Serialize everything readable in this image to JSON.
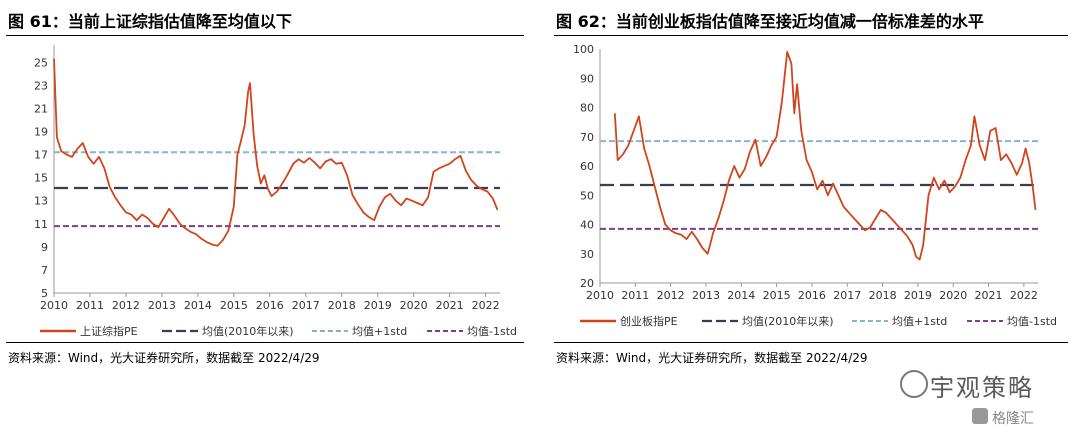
{
  "left": {
    "title": "图 61：当前上证综指估值降至均值以下",
    "source": "资料来源：Wind，光大证券研究所，数据截至 2022/4/29"
  },
  "right": {
    "title": "图 62：当前创业板指估值降至接近均值减一倍标准差的水平",
    "source": "资料来源：Wind，光大证券研究所，数据截至 2022/4/29"
  },
  "watermark": {
    "text": "宇观策略",
    "brand": "格隆汇"
  },
  "colors": {
    "pe": "#d2441c",
    "mean": "#3b3b5c",
    "plus": "#86b4cf",
    "minus": "#7a3f86"
  },
  "chart_data": [
    {
      "type": "line",
      "x_ticks": [
        "2010",
        "2011",
        "2012",
        "2013",
        "2014",
        "2015",
        "2016",
        "2017",
        "2018",
        "2019",
        "2020",
        "2021",
        "2022"
      ],
      "y_ticks": [
        "5",
        "7",
        "9",
        "11",
        "13",
        "15",
        "17",
        "19",
        "21",
        "23",
        "25"
      ],
      "xlim": [
        2010,
        2022.4
      ],
      "ylim": [
        5,
        26.5
      ],
      "legend": [
        "上证综指PE",
        "均值(2010年以来)",
        "均值+1std",
        "均值-1std"
      ],
      "legend_position": "bottom",
      "mean": 14.1,
      "plus_1std": 17.2,
      "minus_1std": 10.8,
      "series": [
        {
          "x": [
            2010.0,
            2010.08,
            2010.2,
            2010.35,
            2010.5,
            2010.65,
            2010.8,
            2010.95,
            2011.1,
            2011.25,
            2011.4,
            2011.55,
            2011.7,
            2011.85,
            2012.0,
            2012.15,
            2012.3,
            2012.45,
            2012.6,
            2012.75,
            2012.9,
            2013.05,
            2013.2,
            2013.35,
            2013.5,
            2013.65,
            2013.8,
            2013.95,
            2014.1,
            2014.25,
            2014.4,
            2014.55,
            2014.7,
            2014.85,
            2015.0,
            2015.1,
            2015.2,
            2015.3,
            2015.4,
            2015.45,
            2015.55,
            2015.65,
            2015.75,
            2015.85,
            2015.95,
            2016.05,
            2016.2,
            2016.35,
            2016.5,
            2016.65,
            2016.8,
            2016.95,
            2017.1,
            2017.25,
            2017.4,
            2017.55,
            2017.7,
            2017.85,
            2018.0,
            2018.15,
            2018.3,
            2018.45,
            2018.6,
            2018.75,
            2018.9,
            2019.05,
            2019.2,
            2019.35,
            2019.5,
            2019.65,
            2019.8,
            2019.95,
            2020.1,
            2020.25,
            2020.4,
            2020.55,
            2020.7,
            2020.85,
            2021.0,
            2021.15,
            2021.3,
            2021.45,
            2021.6,
            2021.75,
            2021.9,
            2022.05,
            2022.2,
            2022.33
          ],
          "values": [
            25.3,
            18.5,
            17.3,
            17.0,
            16.8,
            17.5,
            18.0,
            16.8,
            16.2,
            16.8,
            15.8,
            14.2,
            13.3,
            12.6,
            12.0,
            11.8,
            11.3,
            11.8,
            11.5,
            11.0,
            10.7,
            11.5,
            12.3,
            11.7,
            11.0,
            10.6,
            10.3,
            10.1,
            9.7,
            9.4,
            9.2,
            9.1,
            9.6,
            10.4,
            12.5,
            17.0,
            18.2,
            19.5,
            22.5,
            23.2,
            18.8,
            16.0,
            14.5,
            15.2,
            14.0,
            13.4,
            13.8,
            14.5,
            15.3,
            16.2,
            16.6,
            16.3,
            16.7,
            16.3,
            15.8,
            16.4,
            16.6,
            16.2,
            16.3,
            15.2,
            13.5,
            12.7,
            12.0,
            11.6,
            11.3,
            12.5,
            13.3,
            13.6,
            13.0,
            12.6,
            13.2,
            13.0,
            12.8,
            12.6,
            13.3,
            15.5,
            15.8,
            16.0,
            16.2,
            16.6,
            16.9,
            15.6,
            14.8,
            14.3,
            14.0,
            13.8,
            13.2,
            12.2
          ]
        }
      ]
    },
    {
      "type": "line",
      "x_ticks": [
        "2010",
        "2011",
        "2012",
        "2013",
        "2014",
        "2015",
        "2016",
        "2017",
        "2018",
        "2019",
        "2020",
        "2021",
        "2022"
      ],
      "y_ticks": [
        "20",
        "30",
        "40",
        "50",
        "60",
        "70",
        "80",
        "90",
        "100"
      ],
      "xlim": [
        2010,
        2022.4
      ],
      "ylim": [
        20,
        100
      ],
      "legend": [
        "创业板指PE",
        "均值(2010年以来)",
        "均值+1std",
        "均值-1std"
      ],
      "legend_position": "bottom",
      "mean": 53.5,
      "plus_1std": 68.5,
      "minus_1std": 38.5,
      "series": [
        {
          "x": [
            2010.42,
            2010.5,
            2010.65,
            2010.8,
            2010.95,
            2011.1,
            2011.25,
            2011.4,
            2011.55,
            2011.7,
            2011.85,
            2012.0,
            2012.15,
            2012.3,
            2012.45,
            2012.6,
            2012.75,
            2012.9,
            2013.05,
            2013.2,
            2013.35,
            2013.5,
            2013.65,
            2013.8,
            2013.95,
            2014.1,
            2014.25,
            2014.4,
            2014.55,
            2014.7,
            2014.85,
            2015.0,
            2015.15,
            2015.3,
            2015.42,
            2015.5,
            2015.58,
            2015.7,
            2015.85,
            2016.0,
            2016.15,
            2016.3,
            2016.45,
            2016.6,
            2016.75,
            2016.9,
            2017.05,
            2017.2,
            2017.35,
            2017.5,
            2017.65,
            2017.8,
            2017.95,
            2018.1,
            2018.25,
            2018.4,
            2018.55,
            2018.7,
            2018.85,
            2018.95,
            2019.05,
            2019.15,
            2019.3,
            2019.45,
            2019.6,
            2019.75,
            2019.9,
            2020.05,
            2020.2,
            2020.35,
            2020.5,
            2020.6,
            2020.75,
            2020.9,
            2021.05,
            2021.2,
            2021.35,
            2021.5,
            2021.65,
            2021.8,
            2021.95,
            2022.05,
            2022.15,
            2022.25,
            2022.33
          ],
          "values": [
            78.0,
            62.0,
            64.0,
            67.0,
            72.0,
            77.0,
            66.0,
            60.0,
            53.0,
            46.0,
            40.0,
            38.0,
            37.0,
            36.5,
            35.0,
            37.5,
            35.0,
            32.0,
            30.0,
            37.0,
            42.0,
            48.0,
            55.0,
            60.0,
            56.0,
            59.0,
            65.0,
            69.0,
            60.0,
            63.0,
            67.0,
            70.0,
            82.0,
            99.0,
            95.0,
            78.0,
            88.0,
            72.0,
            62.0,
            58.0,
            52.0,
            55.0,
            50.0,
            54.0,
            50.0,
            46.0,
            44.0,
            42.0,
            40.0,
            38.0,
            39.0,
            42.0,
            45.0,
            44.0,
            42.0,
            40.0,
            38.0,
            36.0,
            33.0,
            29.0,
            28.0,
            33.0,
            50.0,
            56.0,
            52.0,
            55.0,
            51.0,
            53.0,
            56.0,
            62.0,
            67.0,
            77.0,
            67.0,
            62.0,
            72.0,
            73.0,
            62.0,
            64.0,
            61.0,
            57.0,
            61.0,
            66.0,
            61.0,
            53.0,
            45.0
          ]
        }
      ]
    }
  ]
}
